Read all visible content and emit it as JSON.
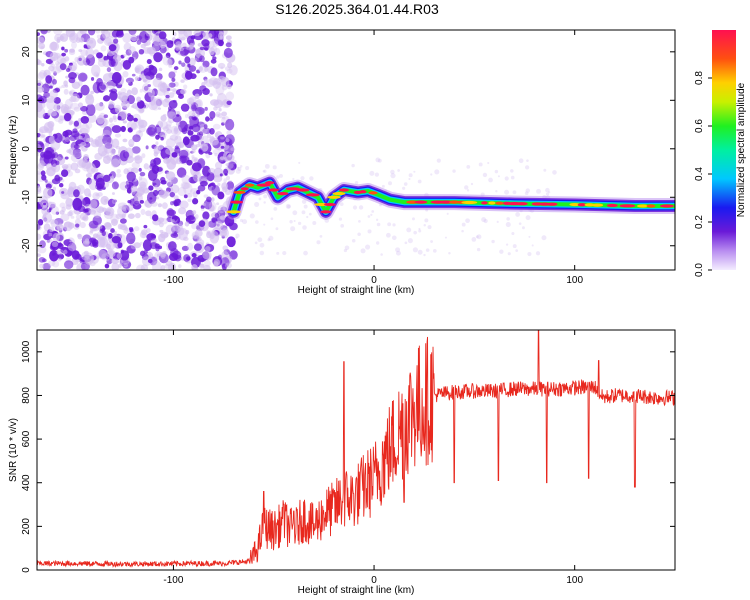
{
  "title": "S126.2025.364.01.44.R03",
  "chart_data": [
    {
      "type": "heatmap",
      "xlabel": "Height of straight line (km)",
      "ylabel": "Frequency (Hz)",
      "xlim": [
        -168,
        150
      ],
      "ylim": [
        -25,
        24.5
      ],
      "xticks": [
        -100,
        0,
        100
      ],
      "yticks": [
        -20,
        -10,
        0,
        10,
        20
      ],
      "colorbar": {
        "label": "Normalized spectral amplitude",
        "range": [
          0,
          1
        ],
        "ticks": [
          "0.0",
          "0.2",
          "0.4",
          "0.6",
          "0.8"
        ]
      },
      "noise_region_x": [
        -168,
        -70
      ],
      "signal_track": [
        {
          "x": -70,
          "y": -13
        },
        {
          "x": -67,
          "y": -9
        },
        {
          "x": -62,
          "y": -7.5
        },
        {
          "x": -58,
          "y": -8
        },
        {
          "x": -52,
          "y": -7
        },
        {
          "x": -48,
          "y": -10
        },
        {
          "x": -43,
          "y": -8.5
        },
        {
          "x": -38,
          "y": -8
        },
        {
          "x": -33,
          "y": -9
        },
        {
          "x": -28,
          "y": -10
        },
        {
          "x": -24,
          "y": -13
        },
        {
          "x": -20,
          "y": -10
        },
        {
          "x": -15,
          "y": -8.5
        },
        {
          "x": -8,
          "y": -9
        },
        {
          "x": -3,
          "y": -8.7
        },
        {
          "x": 2,
          "y": -9.5
        },
        {
          "x": 8,
          "y": -10.5
        },
        {
          "x": 15,
          "y": -11
        },
        {
          "x": 40,
          "y": -11
        },
        {
          "x": 70,
          "y": -11.3
        },
        {
          "x": 100,
          "y": -11.5
        },
        {
          "x": 130,
          "y": -11.8
        },
        {
          "x": 150,
          "y": -11.8
        }
      ]
    },
    {
      "type": "line",
      "xlabel": "Height of straight line (km)",
      "ylabel": "SNR (10 * v/v)",
      "xlim": [
        -168,
        150
      ],
      "ylim": [
        0,
        1100
      ],
      "xticks": [
        -100,
        0,
        100
      ],
      "yticks": [
        0,
        200,
        400,
        600,
        800,
        1000
      ],
      "series": [
        {
          "name": "SNR",
          "color": "#e8281e",
          "x": [
            -168,
            -150,
            -130,
            -110,
            -90,
            -75,
            -62,
            -58,
            -55,
            -50,
            -45,
            -40,
            -35,
            -30,
            -25,
            -20,
            -15,
            -10,
            -5,
            0,
            5,
            10,
            15,
            20,
            25,
            30,
            35,
            40,
            50,
            60,
            70,
            80,
            90,
            100,
            110,
            114,
            120,
            130,
            140,
            150
          ],
          "values": [
            30,
            30,
            28,
            28,
            30,
            30,
            40,
            100,
            200,
            180,
            220,
            180,
            240,
            200,
            260,
            280,
            330,
            330,
            380,
            420,
            510,
            590,
            680,
            740,
            770,
            800,
            810,
            815,
            820,
            820,
            830,
            830,
            830,
            835,
            840,
            790,
            800,
            800,
            790,
            790
          ],
          "spikes": [
            {
              "x": -55,
              "value": 360
            },
            {
              "x": -45,
              "value": 300
            },
            {
              "x": -40,
              "value": 270
            },
            {
              "x": -15,
              "value": 955
            },
            {
              "x": 0,
              "value": 500
            },
            {
              "x": 15,
              "value": 310
            },
            {
              "x": 40,
              "value": 400
            },
            {
              "x": 62,
              "value": 410
            },
            {
              "x": 82,
              "value": 1100
            },
            {
              "x": 86,
              "value": 400
            },
            {
              "x": 107,
              "value": 420
            },
            {
              "x": 112,
              "value": 960
            },
            {
              "x": 130,
              "value": 380
            }
          ]
        }
      ]
    }
  ],
  "colors": {
    "line": "#e8281e",
    "noise_light": "#d4bff0",
    "noise_dark": "#6a1ad8"
  }
}
